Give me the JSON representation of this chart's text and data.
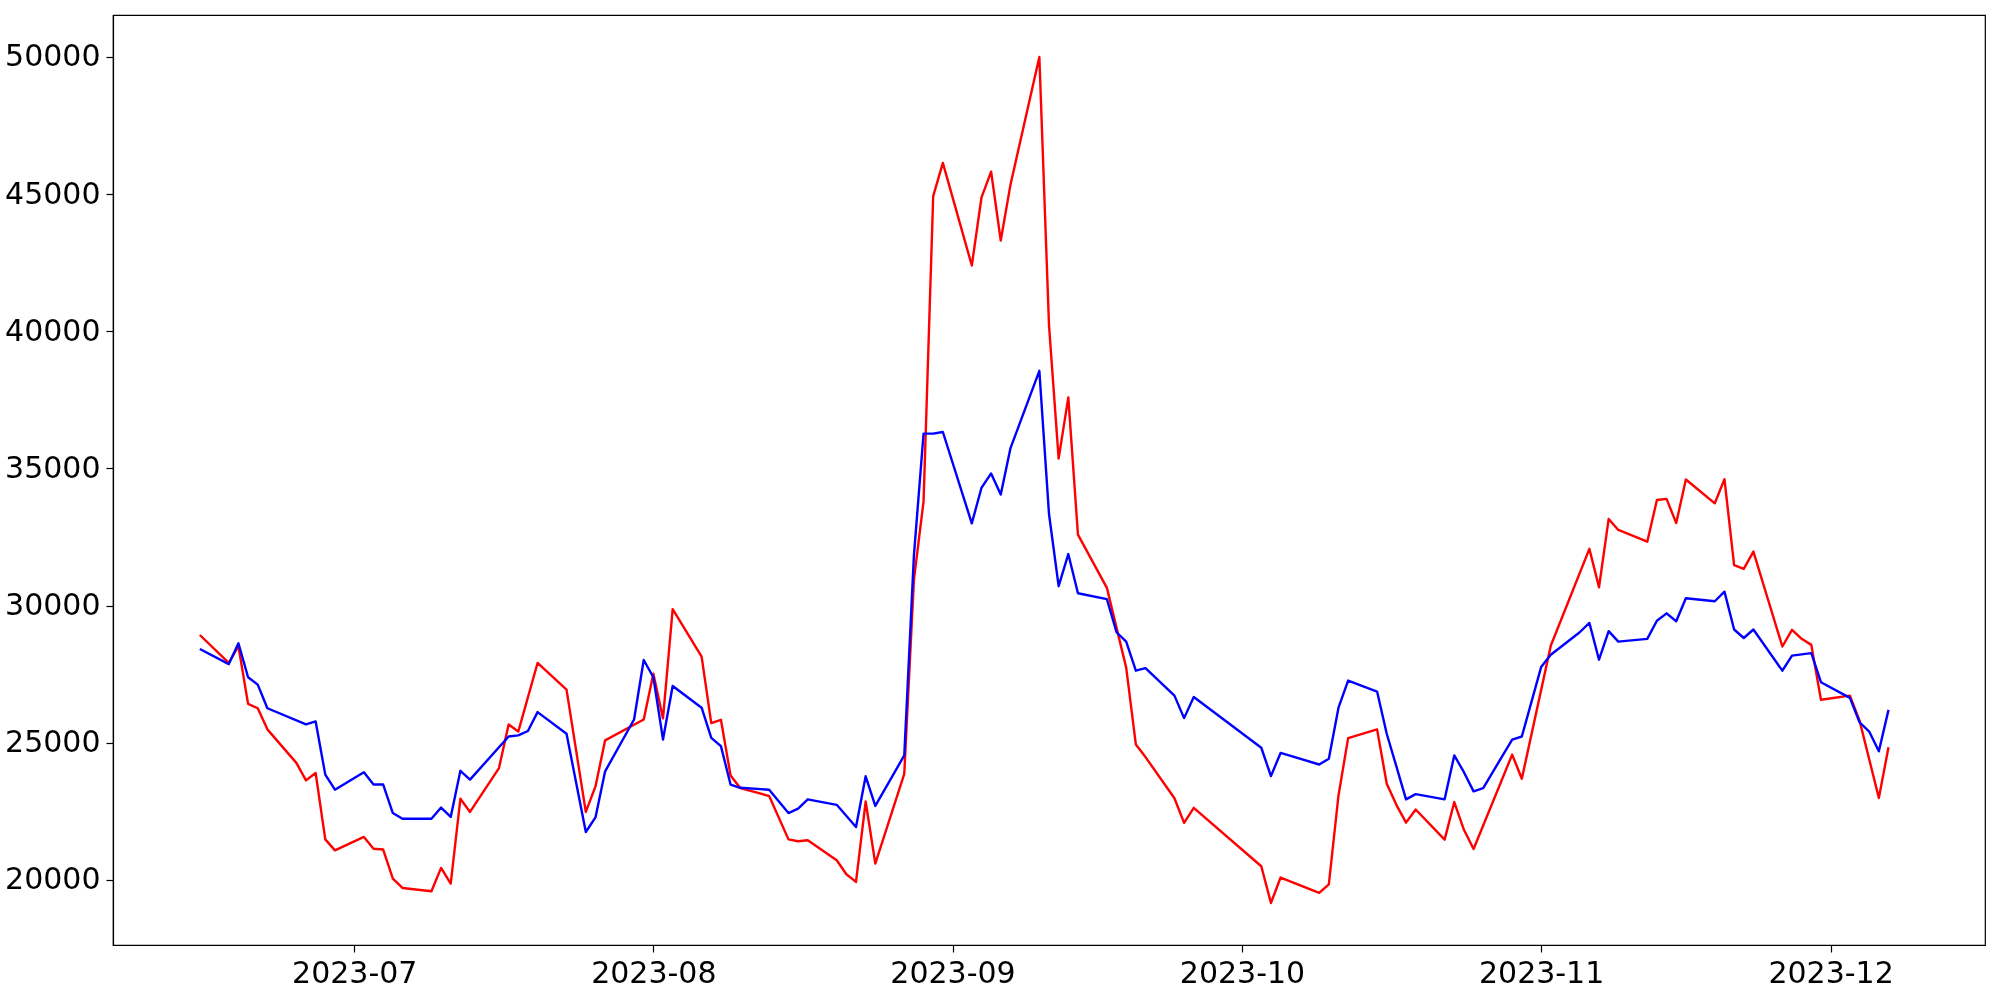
{
  "chart_data": {
    "type": "line",
    "xlim": [
      "2023-06-06",
      "2023-12-17"
    ],
    "xticks": [
      {
        "value": "2023-07-01",
        "label": "2023-07"
      },
      {
        "value": "2023-08-01",
        "label": "2023-08"
      },
      {
        "value": "2023-09-01",
        "label": "2023-09"
      },
      {
        "value": "2023-10-01",
        "label": "2023-10"
      },
      {
        "value": "2023-11-01",
        "label": "2023-11"
      },
      {
        "value": "2023-12-01",
        "label": "2023-12"
      }
    ],
    "ylim": [
      17630,
      51530
    ],
    "yticks": [
      20000,
      25000,
      30000,
      35000,
      40000,
      45000,
      50000
    ],
    "series": [
      {
        "color": "#ff0000",
        "x": [
          "2023-06-15",
          "2023-06-18",
          "2023-06-19",
          "2023-06-20",
          "2023-06-21",
          "2023-06-22",
          "2023-06-25",
          "2023-06-26",
          "2023-06-27",
          "2023-06-28",
          "2023-06-29",
          "2023-07-02",
          "2023-07-03",
          "2023-07-04",
          "2023-07-05",
          "2023-07-06",
          "2023-07-09",
          "2023-07-10",
          "2023-07-11",
          "2023-07-12",
          "2023-07-13",
          "2023-07-16",
          "2023-07-17",
          "2023-07-18",
          "2023-07-20",
          "2023-07-23",
          "2023-07-25",
          "2023-07-26",
          "2023-07-27",
          "2023-07-31",
          "2023-08-01",
          "2023-08-02",
          "2023-08-03",
          "2023-08-06",
          "2023-08-07",
          "2023-08-08",
          "2023-08-09",
          "2023-08-10",
          "2023-08-13",
          "2023-08-15",
          "2023-08-16",
          "2023-08-17",
          "2023-08-20",
          "2023-08-21",
          "2023-08-22",
          "2023-08-23",
          "2023-08-24",
          "2023-08-27",
          "2023-08-28",
          "2023-08-29",
          "2023-08-30",
          "2023-08-31",
          "2023-09-03",
          "2023-09-04",
          "2023-09-05",
          "2023-09-06",
          "2023-09-07",
          "2023-09-10",
          "2023-09-11",
          "2023-09-12",
          "2023-09-13",
          "2023-09-14",
          "2023-09-17",
          "2023-09-18",
          "2023-09-19",
          "2023-09-20",
          "2023-09-21",
          "2023-09-24",
          "2023-09-25",
          "2023-09-26",
          "2023-10-03",
          "2023-10-04",
          "2023-10-05",
          "2023-10-09",
          "2023-10-10",
          "2023-10-11",
          "2023-10-12",
          "2023-10-15",
          "2023-10-16",
          "2023-10-17",
          "2023-10-18",
          "2023-10-19",
          "2023-10-22",
          "2023-10-23",
          "2023-10-24",
          "2023-10-25",
          "2023-10-29",
          "2023-10-30",
          "2023-11-02",
          "2023-11-06",
          "2023-11-07",
          "2023-11-08",
          "2023-11-09",
          "2023-11-12",
          "2023-11-13",
          "2023-11-14",
          "2023-11-15",
          "2023-11-16",
          "2023-11-19",
          "2023-11-20",
          "2023-11-21",
          "2023-11-22",
          "2023-11-23",
          "2023-11-26",
          "2023-11-27",
          "2023-11-28",
          "2023-11-29",
          "2023-11-30",
          "2023-12-03",
          "2023-12-04",
          "2023-12-06",
          "2023-12-07"
        ],
        "values": [
          28930,
          27910,
          28520,
          26420,
          26260,
          25490,
          24270,
          23630,
          23900,
          21480,
          21080,
          21570,
          21140,
          21110,
          20050,
          19710,
          19590,
          20440,
          19870,
          22960,
          22480,
          24080,
          25670,
          25410,
          27910,
          26940,
          22480,
          23410,
          25090,
          25850,
          27520,
          25890,
          29870,
          28140,
          25720,
          25840,
          23810,
          23350,
          23060,
          21480,
          21410,
          21450,
          20720,
          20210,
          19930,
          22860,
          20600,
          23870,
          30940,
          33800,
          44930,
          46140,
          42400,
          44870,
          45820,
          43310,
          45330,
          50000,
          40220,
          35360,
          37590,
          32590,
          30650,
          29190,
          27740,
          24940,
          24480,
          22980,
          22080,
          22630,
          20500,
          19160,
          20090,
          19530,
          19840,
          23080,
          25170,
          25490,
          23510,
          22740,
          22090,
          22570,
          21470,
          22840,
          21830,
          21130,
          24570,
          23690,
          28540,
          32070,
          30670,
          33160,
          32760,
          32330,
          33850,
          33890,
          33010,
          34600,
          33730,
          34610,
          31480,
          31340,
          31970,
          28510,
          29120,
          28790,
          28570,
          26570,
          26720,
          25810,
          22990,
          24840
        ]
      },
      {
        "color": "#0000ff",
        "x": [
          "2023-06-15",
          "2023-06-18",
          "2023-06-19",
          "2023-06-20",
          "2023-06-21",
          "2023-06-22",
          "2023-06-26",
          "2023-06-27",
          "2023-06-28",
          "2023-06-29",
          "2023-07-02",
          "2023-07-03",
          "2023-07-04",
          "2023-07-05",
          "2023-07-06",
          "2023-07-09",
          "2023-07-10",
          "2023-07-11",
          "2023-07-12",
          "2023-07-13",
          "2023-07-17",
          "2023-07-18",
          "2023-07-19",
          "2023-07-20",
          "2023-07-23",
          "2023-07-25",
          "2023-07-26",
          "2023-07-27",
          "2023-07-30",
          "2023-07-31",
          "2023-08-01",
          "2023-08-02",
          "2023-08-03",
          "2023-08-06",
          "2023-08-07",
          "2023-08-08",
          "2023-08-09",
          "2023-08-10",
          "2023-08-13",
          "2023-08-15",
          "2023-08-16",
          "2023-08-17",
          "2023-08-20",
          "2023-08-22",
          "2023-08-23",
          "2023-08-24",
          "2023-08-27",
          "2023-08-28",
          "2023-08-29",
          "2023-08-30",
          "2023-08-31",
          "2023-09-03",
          "2023-09-04",
          "2023-09-05",
          "2023-09-06",
          "2023-09-07",
          "2023-09-10",
          "2023-09-11",
          "2023-09-12",
          "2023-09-13",
          "2023-09-14",
          "2023-09-17",
          "2023-09-18",
          "2023-09-19",
          "2023-09-20",
          "2023-09-21",
          "2023-09-24",
          "2023-09-25",
          "2023-09-26",
          "2023-10-03",
          "2023-10-04",
          "2023-10-05",
          "2023-10-09",
          "2023-10-10",
          "2023-10-11",
          "2023-10-12",
          "2023-10-15",
          "2023-10-16",
          "2023-10-17",
          "2023-10-18",
          "2023-10-19",
          "2023-10-22",
          "2023-10-23",
          "2023-10-24",
          "2023-10-25",
          "2023-10-26",
          "2023-10-29",
          "2023-10-30",
          "2023-11-01",
          "2023-11-02",
          "2023-11-05",
          "2023-11-06",
          "2023-11-07",
          "2023-11-08",
          "2023-11-09",
          "2023-11-12",
          "2023-11-13",
          "2023-11-14",
          "2023-11-15",
          "2023-11-16",
          "2023-11-19",
          "2023-11-20",
          "2023-11-21",
          "2023-11-22",
          "2023-11-23",
          "2023-11-26",
          "2023-11-27",
          "2023-11-29",
          "2023-11-30",
          "2023-12-03",
          "2023-12-04",
          "2023-12-05",
          "2023-12-06",
          "2023-12-07"
        ],
        "values": [
          28420,
          27870,
          28630,
          27390,
          27120,
          26260,
          25670,
          25780,
          23840,
          23290,
          23930,
          23480,
          23480,
          22440,
          22230,
          22230,
          22640,
          22300,
          23980,
          23660,
          25230,
          25270,
          25430,
          26120,
          25330,
          21750,
          22280,
          23960,
          25850,
          28020,
          27390,
          25120,
          27070,
          26280,
          25180,
          24880,
          23480,
          23360,
          23290,
          22440,
          22600,
          22940,
          22740,
          21930,
          23780,
          22700,
          24540,
          31820,
          36270,
          36270,
          36330,
          33000,
          34290,
          34820,
          34050,
          35730,
          38560,
          33340,
          30710,
          31880,
          30450,
          30240,
          29030,
          28690,
          27630,
          27720,
          26720,
          25900,
          26670,
          24820,
          23790,
          24630,
          24210,
          24420,
          26280,
          27270,
          26870,
          25330,
          24140,
          22940,
          23130,
          22940,
          24540,
          23930,
          23230,
          23350,
          25120,
          25230,
          27760,
          28210,
          29030,
          29370,
          28030,
          29070,
          28690,
          28790,
          29450,
          29720,
          29430,
          30270,
          30160,
          30510,
          29130,
          28820,
          29130,
          27630,
          28180,
          28270,
          27210,
          26640,
          25750,
          25410,
          24690,
          26200
        ]
      }
    ]
  }
}
